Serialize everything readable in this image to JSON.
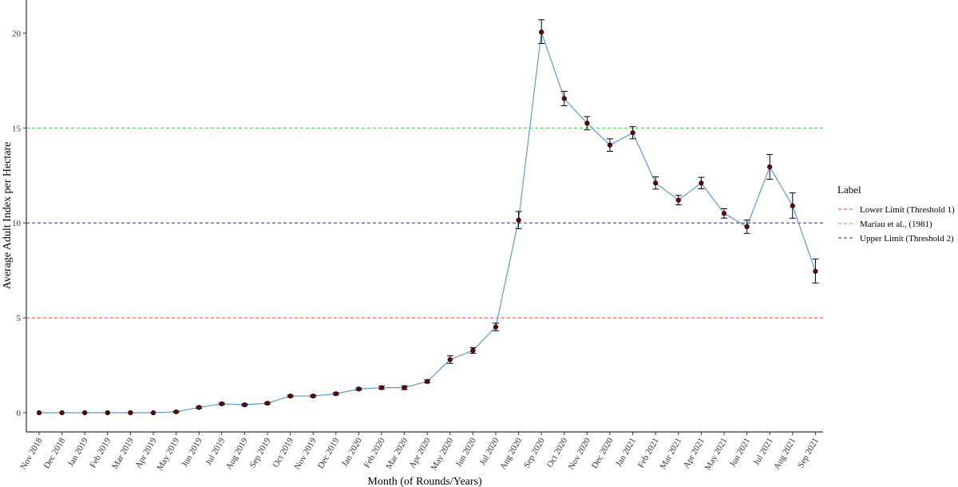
{
  "chart_data": {
    "type": "line",
    "xlabel": "Month (of Rounds/Years)",
    "ylabel": "Average Adult Index per Hectare",
    "ylim": [
      0,
      21
    ],
    "yticks": [
      0,
      5,
      10,
      15,
      20
    ],
    "grid": false,
    "categories": [
      "Nov 2018",
      "Dec 2018",
      "Jan 2019",
      "Feb 2019",
      "Mar 2019",
      "Apr 2019",
      "May 2019",
      "Jun 2019",
      "Jul 2019",
      "Aug 2019",
      "Sep 2019",
      "Oct 2019",
      "Nov 2019",
      "Dec 2019",
      "Jan 2020",
      "Feb 2020",
      "Mar 2020",
      "Apr 2020",
      "May 2020",
      "Jun 2020",
      "Jul 2020",
      "Aug 2020",
      "Sep 2020",
      "Oct 2020",
      "Nov 2020",
      "Dec 2020",
      "Jan 2021",
      "Feb 2021",
      "Mar 2021",
      "Apr 2021",
      "May 2021",
      "Jun 2021",
      "Jul 2021",
      "Aug 2021",
      "Sep 2021"
    ],
    "series": [
      {
        "color": "#5b9bd5",
        "point_color": "#6b0000",
        "values": [
          0,
          0,
          0,
          0,
          0,
          0,
          0.05,
          0.28,
          0.47,
          0.42,
          0.5,
          0.88,
          0.88,
          1.0,
          1.25,
          1.32,
          1.32,
          1.65,
          2.8,
          3.28,
          4.52,
          10.15,
          20.05,
          16.55,
          15.25,
          14.1,
          14.75,
          12.1,
          11.2,
          12.1,
          10.5,
          9.8,
          12.95,
          10.9,
          7.45
        ],
        "err_low": [
          0,
          0,
          0,
          0,
          0,
          0,
          0.02,
          0.05,
          0.05,
          0.05,
          0.05,
          0.05,
          0.05,
          0.06,
          0.06,
          0.08,
          0.1,
          0.08,
          0.2,
          0.15,
          0.2,
          0.45,
          0.6,
          0.38,
          0.35,
          0.33,
          0.32,
          0.32,
          0.25,
          0.3,
          0.25,
          0.35,
          0.65,
          0.65,
          0.62
        ],
        "err_high": [
          0,
          0,
          0,
          0,
          0,
          0,
          0.02,
          0.05,
          0.05,
          0.05,
          0.05,
          0.05,
          0.05,
          0.06,
          0.06,
          0.08,
          0.1,
          0.08,
          0.2,
          0.15,
          0.2,
          0.45,
          0.65,
          0.38,
          0.35,
          0.33,
          0.32,
          0.32,
          0.25,
          0.3,
          0.25,
          0.35,
          0.65,
          0.68,
          0.65
        ]
      }
    ],
    "reference_lines": [
      {
        "label": "Lower Limit (Threshold 1)",
        "value": 5,
        "color": "#ff3333"
      },
      {
        "label": "Mariau et al., (1981)",
        "value": 15,
        "color": "#33cc33"
      },
      {
        "label": "Upper Limit (Threshold 2)",
        "value": 10,
        "color": "#2222cc"
      }
    ],
    "legend": {
      "title": "Label",
      "position": "right",
      "entries": [
        {
          "label": "Lower Limit (Threshold 1)",
          "color": "#ff3333"
        },
        {
          "label": "Mariau et al., (1981)",
          "color": "#33cc33"
        },
        {
          "label": "Upper Limit (Threshold 2)",
          "color": "#2222cc"
        }
      ]
    }
  }
}
